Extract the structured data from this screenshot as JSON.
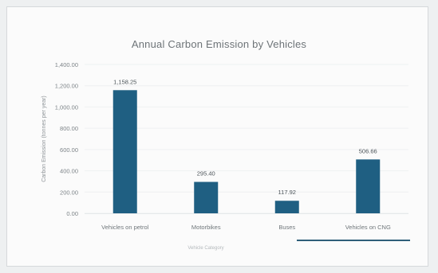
{
  "chart_data": {
    "type": "bar",
    "title": "Annual Carbon Emission by Vehicles",
    "xlabel": "Vehicle Category",
    "ylabel": "Carbon Emission (tonnes per year)",
    "categories": [
      "Vehicles on petrol",
      "Motorbikes",
      "Buses",
      "Vehicles on CNG"
    ],
    "values": [
      1158.25,
      295.4,
      117.92,
      506.66
    ],
    "data_labels": [
      "1,158.25",
      "295.40",
      "117.92",
      "506.66"
    ],
    "ylim": [
      0,
      1400
    ],
    "yticks": [
      0,
      200,
      400,
      600,
      800,
      1000,
      1200,
      1400
    ],
    "ytick_labels": [
      "0.00",
      "200.00",
      "400.00",
      "600.00",
      "800.00",
      "1,000.00",
      "1,200.00",
      "1,400.00"
    ],
    "bar_color": "#1f5f82",
    "grid": false,
    "legend": "none"
  }
}
